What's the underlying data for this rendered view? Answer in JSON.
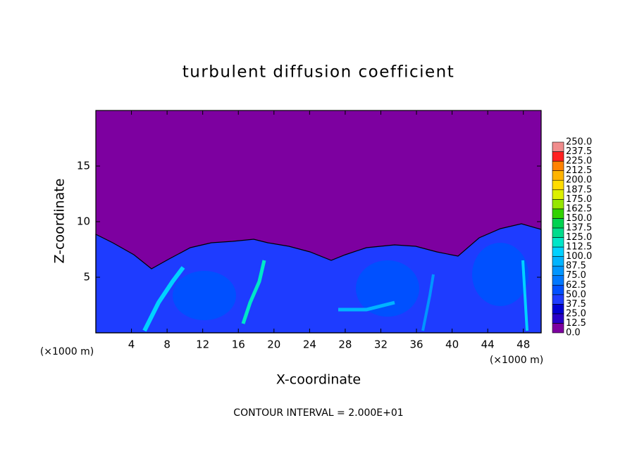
{
  "chart_data": {
    "type": "contour",
    "title": "turbulent diffusion coefficient",
    "x_label": "X-coordinate",
    "y_label": "Z-coordinate",
    "unit_labels": [
      "(×1000 m)",
      "(×1000 m)"
    ],
    "footer": "CONTOUR INTERVAL = 2.000E+01",
    "xlim": [
      0,
      50
    ],
    "xticks": [
      4,
      8,
      12,
      16,
      20,
      24,
      28,
      32,
      36,
      40,
      44,
      48
    ],
    "ylim": [
      0,
      20
    ],
    "yticks": [
      5,
      10,
      15
    ],
    "colorbar": {
      "levels": [
        {
          "value": 0,
          "label": "0.0"
        },
        12.5,
        {
          "value": 25,
          "label": "25.0"
        },
        37.5,
        {
          "value": 50,
          "label": "50.0"
        },
        62.5,
        {
          "value": 75,
          "label": "75.0"
        },
        87.5,
        {
          "value": 100,
          "label": "100.0"
        },
        112.5,
        {
          "value": 125,
          "label": "125.0"
        },
        137.5,
        {
          "value": 150,
          "label": "150.0"
        },
        162.5,
        {
          "value": 175,
          "label": "175.0"
        },
        187.5,
        {
          "value": 200,
          "label": "200.0"
        },
        212.5,
        {
          "value": 225,
          "label": "225.0"
        },
        237.5,
        {
          "value": 250,
          "label": "250.0"
        }
      ],
      "colors": [
        "#7d00a0",
        "#2800c8",
        "#0000d2",
        "#1e3cff",
        "#0050ff",
        "#0078ff",
        "#0096ff",
        "#00b4ff",
        "#00d2ff",
        "#00e6c8",
        "#00dc8c",
        "#00d250",
        "#32d200",
        "#96e600",
        "#dcf000",
        "#ffdc00",
        "#ffb400",
        "#ff8200",
        "#ff2020",
        "#f08c8c"
      ]
    }
  }
}
